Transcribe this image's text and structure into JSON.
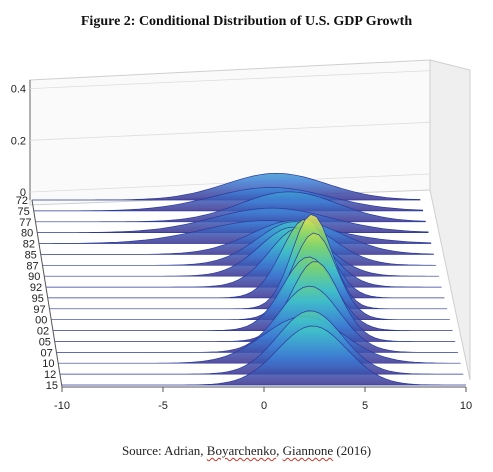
{
  "figure": {
    "title": "Figure 2: Conditional Distribution of U.S. GDP Growth",
    "source_prefix": "Source: Adrian, ",
    "source_author2": "Boyarchenko",
    "source_mid": ", ",
    "source_author3": "Giannone",
    "source_suffix": " (2016)"
  },
  "chart_data": {
    "type": "surface3d",
    "title": "",
    "x_axis": {
      "label": "",
      "range": [
        -10,
        10
      ],
      "ticks": [
        "-10",
        "-5",
        "0",
        "5",
        "10"
      ]
    },
    "y_axis": {
      "label": "",
      "ticks": [
        "72",
        "75",
        "77",
        "80",
        "82",
        "85",
        "87",
        "90",
        "92",
        "95",
        "97",
        "00",
        "02",
        "05",
        "07",
        "10",
        "12",
        "15"
      ]
    },
    "z_axis": {
      "label": "",
      "range": [
        0,
        0.4
      ],
      "ticks": [
        "0",
        "0.2",
        "0.4"
      ]
    },
    "colormap": [
      "#3b2f8f",
      "#3d7fd6",
      "#3fc1c9",
      "#7fd36b",
      "#f9e94b"
    ],
    "series": [
      {
        "year": "72",
        "peak": 0.14,
        "mean": 2.6,
        "sd": 2.6
      },
      {
        "year": "75",
        "peak": 0.12,
        "mean": 2.2,
        "sd": 3.0
      },
      {
        "year": "77",
        "peak": 0.15,
        "mean": 3.0,
        "sd": 2.5
      },
      {
        "year": "80",
        "peak": 0.12,
        "mean": 2.0,
        "sd": 3.0
      },
      {
        "year": "82",
        "peak": 0.11,
        "mean": 1.6,
        "sd": 3.2
      },
      {
        "year": "85",
        "peak": 0.16,
        "mean": 3.0,
        "sd": 2.3
      },
      {
        "year": "87",
        "peak": 0.2,
        "mean": 2.8,
        "sd": 1.9
      },
      {
        "year": "90",
        "peak": 0.22,
        "mean": 2.6,
        "sd": 1.7
      },
      {
        "year": "92",
        "peak": 0.26,
        "mean": 2.8,
        "sd": 1.5
      },
      {
        "year": "95",
        "peak": 0.34,
        "mean": 3.0,
        "sd": 1.2
      },
      {
        "year": "97",
        "peak": 0.4,
        "mean": 3.2,
        "sd": 1.0
      },
      {
        "year": "00",
        "peak": 0.36,
        "mean": 3.2,
        "sd": 1.1
      },
      {
        "year": "02",
        "peak": 0.3,
        "mean": 2.8,
        "sd": 1.3
      },
      {
        "year": "05",
        "peak": 0.32,
        "mean": 3.0,
        "sd": 1.2
      },
      {
        "year": "07",
        "peak": 0.26,
        "mean": 2.6,
        "sd": 1.5
      },
      {
        "year": "10",
        "peak": 0.18,
        "mean": 2.2,
        "sd": 2.0
      },
      {
        "year": "12",
        "peak": 0.24,
        "mean": 2.4,
        "sd": 1.6
      },
      {
        "year": "15",
        "peak": 0.22,
        "mean": 2.4,
        "sd": 1.7
      }
    ]
  }
}
